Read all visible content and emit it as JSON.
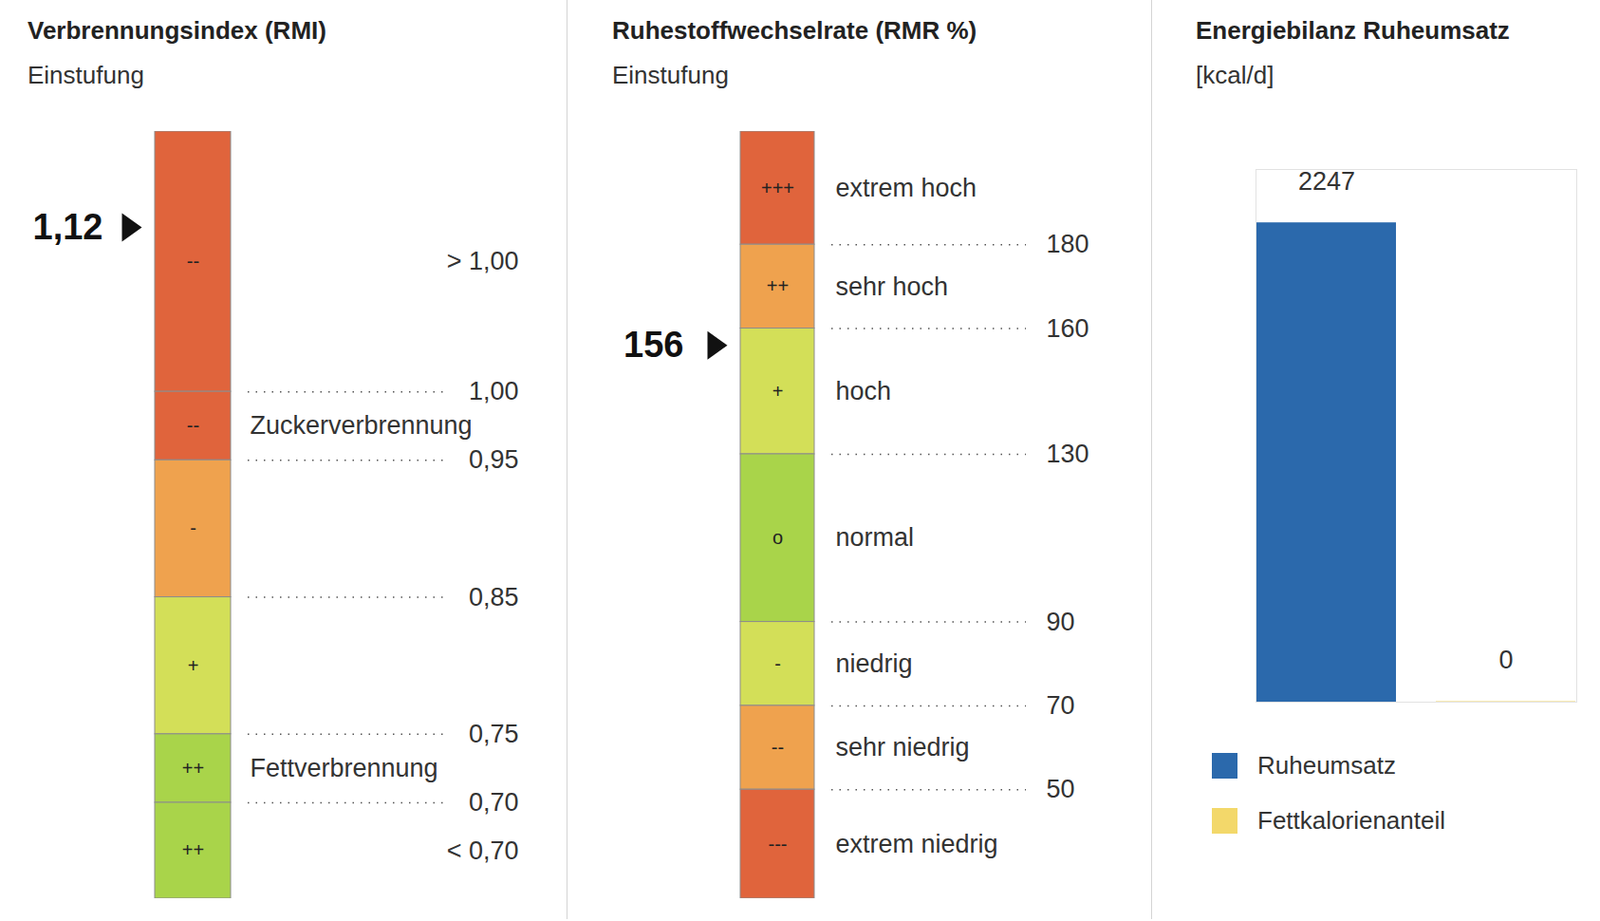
{
  "chart_data": [
    {
      "type": "gauge",
      "title": "Verbrennungsindex (RMI)",
      "subtitle": "Einstufung",
      "ylim": [
        0.63,
        1.19
      ],
      "yticks": [
        {
          "value": 1.0,
          "label": "1,00"
        },
        {
          "value": 0.95,
          "label": "0,95"
        },
        {
          "value": 0.85,
          "label": "0,85"
        },
        {
          "value": 0.75,
          "label": "0,75"
        },
        {
          "value": 0.7,
          "label": "0,70"
        }
      ],
      "segments": [
        {
          "from": 1.0,
          "to": 1.19,
          "symbol": "--",
          "range_label": "> 1,00",
          "color": "#e0643c"
        },
        {
          "from": 0.95,
          "to": 1.0,
          "symbol": "--",
          "name": "Zuckerverbrennung",
          "color": "#e0643c"
        },
        {
          "from": 0.85,
          "to": 0.95,
          "symbol": "-",
          "color": "#efa24e"
        },
        {
          "from": 0.75,
          "to": 0.85,
          "symbol": "+",
          "color": "#d3df58"
        },
        {
          "from": 0.7,
          "to": 0.75,
          "symbol": "++",
          "name": "Fettverbrennung",
          "color": "#a9d44a"
        },
        {
          "from": 0.63,
          "to": 0.7,
          "symbol": "++",
          "range_label": "< 0,70",
          "color": "#a9d44a"
        }
      ],
      "values": [
        1.12
      ],
      "value_labels": [
        "1,12"
      ]
    },
    {
      "type": "gauge",
      "title": "Ruhestoffwechselrate (RMR %)",
      "subtitle": "Einstufung",
      "ylim": [
        24,
        207
      ],
      "yticks": [
        180,
        160,
        130,
        90,
        70,
        50
      ],
      "segments": [
        {
          "from": 180,
          "to": 207,
          "symbol": "+++",
          "name": "extrem hoch",
          "color": "#e0643c"
        },
        {
          "from": 160,
          "to": 180,
          "symbol": "++",
          "name": "sehr hoch",
          "color": "#efa24e"
        },
        {
          "from": 130,
          "to": 160,
          "symbol": "+",
          "name": "hoch",
          "color": "#d3df58"
        },
        {
          "from": 90,
          "to": 130,
          "symbol": "o",
          "name": "normal",
          "color": "#a9d44a"
        },
        {
          "from": 70,
          "to": 90,
          "symbol": "-",
          "name": "niedrig",
          "color": "#d3df58"
        },
        {
          "from": 50,
          "to": 70,
          "symbol": "--",
          "name": "sehr niedrig",
          "color": "#efa24e"
        },
        {
          "from": 24,
          "to": 50,
          "symbol": "---",
          "name": "extrem niedrig",
          "color": "#e0643c"
        }
      ],
      "values": [
        156
      ]
    },
    {
      "type": "bar",
      "title": "Energiebilanz Ruheumsatz",
      "subtitle": "[kcal/d]",
      "categories": [
        "Ruheumsatz",
        "Fettkalorienanteil"
      ],
      "values": [
        2247,
        0
      ],
      "colors": [
        "#2b69ac",
        "#f3d86a"
      ],
      "ylim": [
        0,
        2500
      ],
      "yticks": [],
      "data_labels": true,
      "tick_labels": false,
      "legend": "bottom"
    }
  ]
}
